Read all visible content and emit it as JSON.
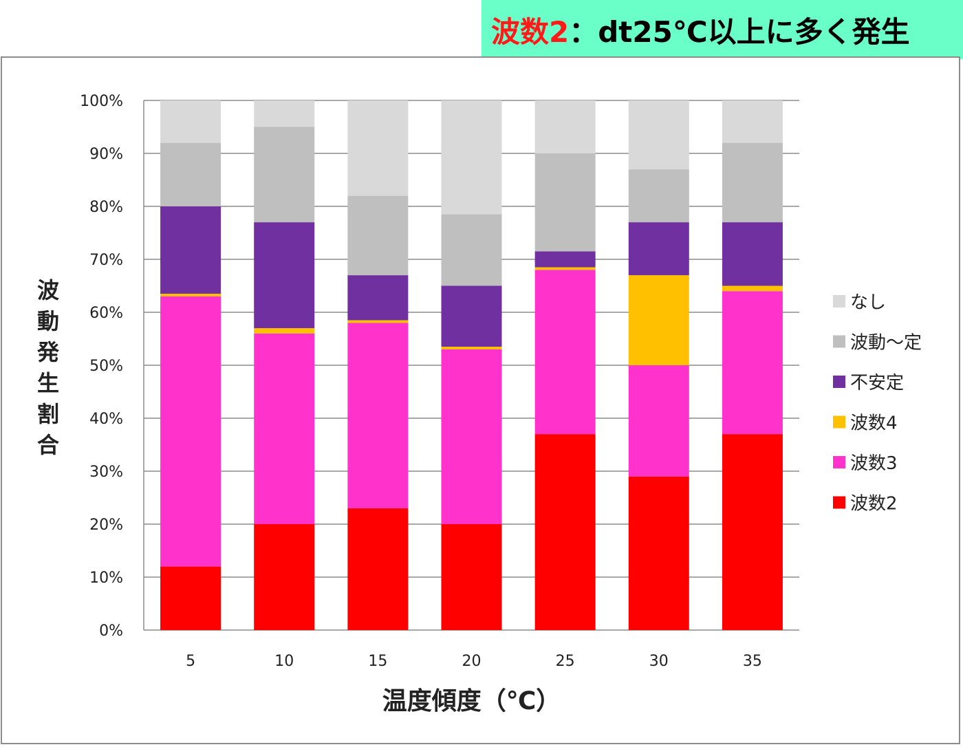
{
  "banner": {
    "highlight": "波数2",
    "rest": "：dt25℃以上に多く発生",
    "background": "#6affc8",
    "highlight_color": "#ff1a1a"
  },
  "chart_data": {
    "type": "bar",
    "stacked": true,
    "normalized": true,
    "xlabel": "温度傾度（℃）",
    "ylabel": "波動発生割合",
    "categories": [
      "5",
      "10",
      "15",
      "20",
      "25",
      "30",
      "35"
    ],
    "ylim": [
      0,
      100
    ],
    "yticks": [
      "0%",
      "10%",
      "20%",
      "30%",
      "40%",
      "50%",
      "60%",
      "70%",
      "80%",
      "90%",
      "100%"
    ],
    "grid": true,
    "legend_position": "right",
    "series": [
      {
        "name": "波数2",
        "color": "#ff0000",
        "values": [
          12,
          20,
          23,
          20,
          37,
          29,
          37
        ]
      },
      {
        "name": "波数3",
        "color": "#ff33cc",
        "values": [
          51,
          36,
          35,
          33,
          31,
          21,
          27
        ]
      },
      {
        "name": "波数4",
        "color": "#ffc000",
        "values": [
          0.5,
          1,
          0.5,
          0.5,
          0.5,
          17,
          1
        ]
      },
      {
        "name": "不安定",
        "color": "#7030a0",
        "values": [
          16.5,
          20,
          8.5,
          11.5,
          3,
          10,
          12
        ]
      },
      {
        "name": "波動～定",
        "color": "#bfbfbf",
        "values": [
          12,
          18,
          15,
          13.5,
          18.5,
          10,
          15
        ]
      },
      {
        "name": "なし",
        "color": "#d9d9d9",
        "values": [
          8,
          5,
          18,
          21.5,
          10,
          13,
          8
        ]
      }
    ]
  }
}
